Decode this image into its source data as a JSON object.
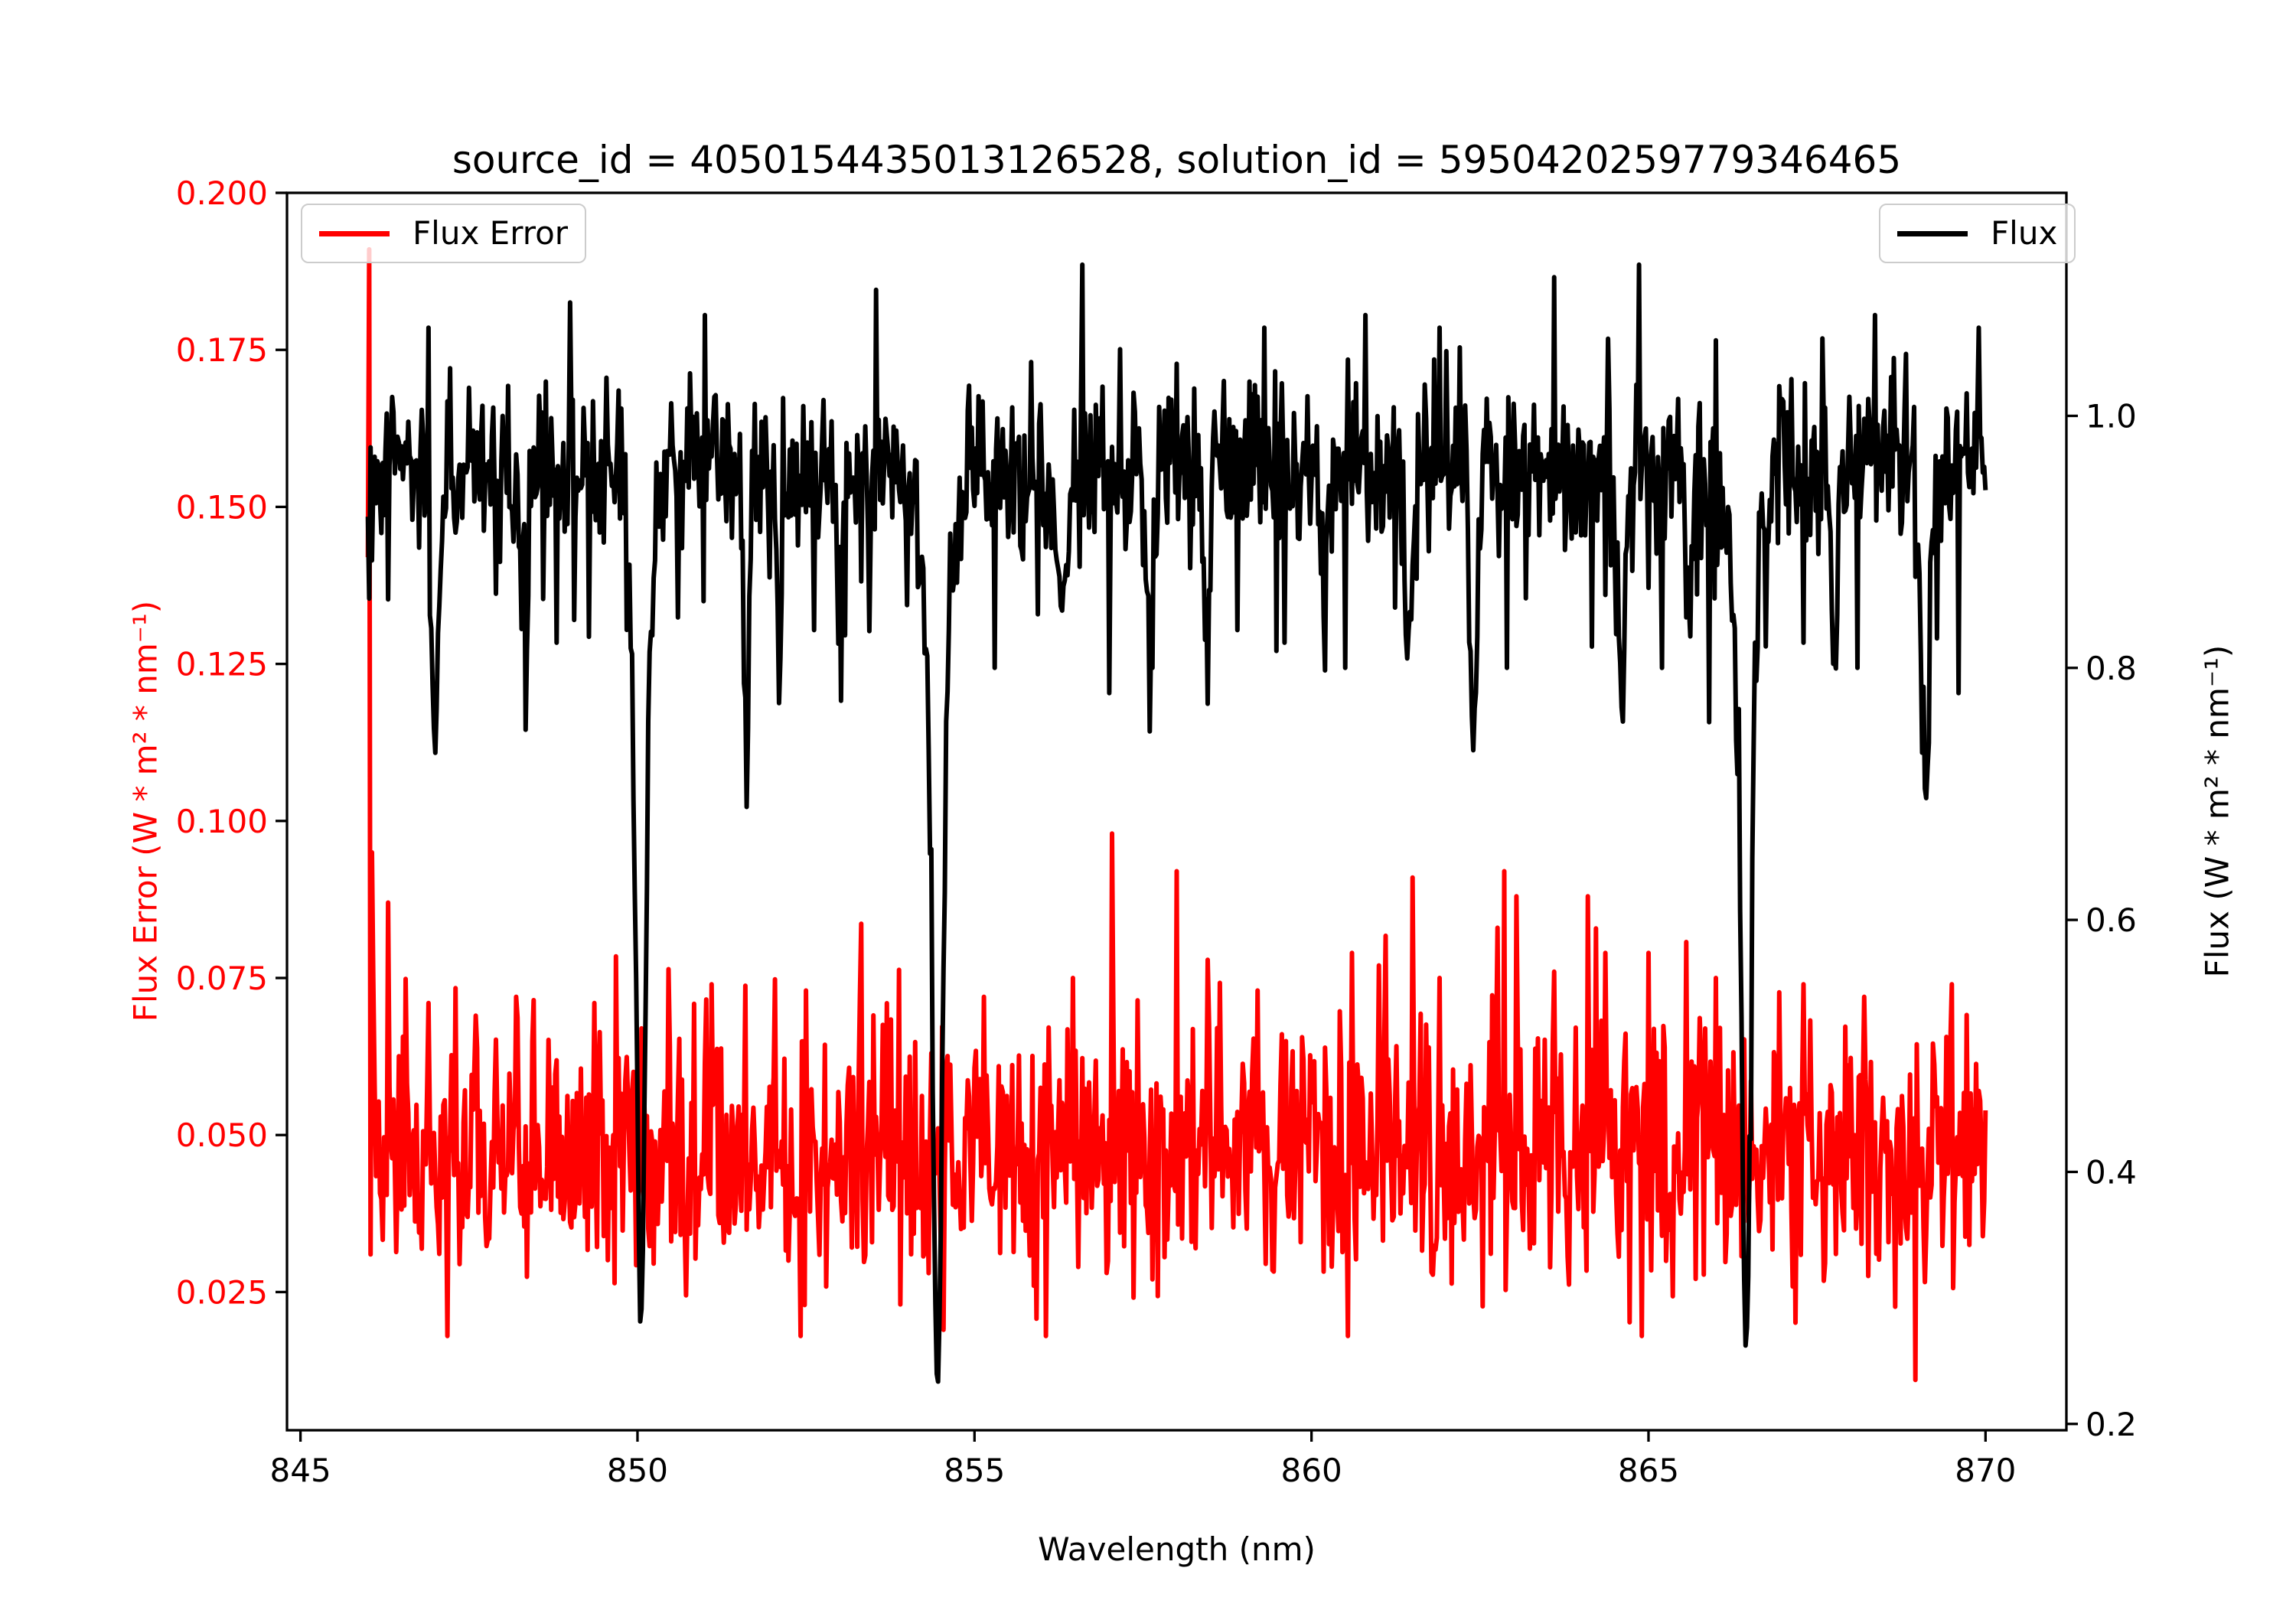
{
  "figure": {
    "title": "source_id = 4050154435013126528, solution_id = 5950420259779346465",
    "background": "#ffffff"
  },
  "legend": {
    "left": {
      "label": "Flux Error",
      "line_color": "#ff0000"
    },
    "right": {
      "label": "Flux",
      "line_color": "#000000"
    }
  },
  "chart_data": {
    "type": "line",
    "title": "source_id = 4050154435013126528, solution_id = 5950420259779346465",
    "xlabel": "Wavelength (nm)",
    "ylabel_left": "Flux Error (W * m² * nm⁻¹)",
    "ylabel_right": "Flux (W * m² * nm⁻¹)",
    "grid": false,
    "legend_positions": [
      "upper left",
      "upper right"
    ],
    "xlim": [
      844.8,
      871.2
    ],
    "ylim_left": [
      0.003,
      0.2
    ],
    "ylim_right": [
      0.195,
      1.177
    ],
    "xticks": {
      "values": [
        845,
        850,
        855,
        860,
        865,
        870
      ],
      "labels": [
        "845",
        "850",
        "855",
        "860",
        "865",
        "870"
      ]
    },
    "yticks_left": {
      "values": [
        0.2,
        0.175,
        0.15,
        0.125,
        0.1,
        0.075,
        0.05,
        0.025
      ],
      "labels": [
        "0.200",
        "0.175",
        "0.150",
        "0.125",
        "0.100",
        "0.075",
        "0.050",
        "0.025"
      ],
      "color": "#ff0000"
    },
    "yticks_right": {
      "values": [
        1.0,
        0.8,
        0.6,
        0.4,
        0.2
      ],
      "labels": [
        "1.0",
        "0.8",
        "0.6",
        "0.4",
        "0.2"
      ],
      "color": "#000000"
    },
    "x_start": 846.0,
    "x_end": 870.0,
    "x_step": 0.02,
    "random_seed": 42,
    "series": [
      {
        "name": "Flux Error",
        "axis": "left",
        "color": "#ff0000",
        "line_width": 6,
        "baseline": 0.046,
        "noise_sigma": 0.0095,
        "tail_prob": 0.05,
        "tail_min": 0.01,
        "tail_max": 0.022,
        "min_clamp": 0.018,
        "first_points": [
          0.142,
          0.191,
          0.031,
          0.095,
          0.075,
          0.058
        ],
        "spikes": [
          [
            846.3,
            0.087
          ],
          [
            846.9,
            0.071
          ],
          [
            847.6,
            0.069
          ],
          [
            848.2,
            0.072
          ],
          [
            849.35,
            0.071
          ],
          [
            851.1,
            0.074
          ],
          [
            852.5,
            0.073
          ],
          [
            853.3,
            0.072
          ],
          [
            855.15,
            0.072
          ],
          [
            856.45,
            0.075
          ],
          [
            857.05,
            0.098
          ],
          [
            858.0,
            0.092
          ],
          [
            859.2,
            0.073
          ],
          [
            860.6,
            0.079
          ],
          [
            861.0,
            0.077
          ],
          [
            861.5,
            0.091
          ],
          [
            861.9,
            0.075
          ],
          [
            862.85,
            0.092
          ],
          [
            863.05,
            0.088
          ],
          [
            863.6,
            0.076
          ],
          [
            864.1,
            0.088
          ],
          [
            864.35,
            0.079
          ],
          [
            865.0,
            0.079
          ],
          [
            866.0,
            0.075
          ],
          [
            867.3,
            0.074
          ],
          [
            868.2,
            0.072
          ],
          [
            869.5,
            0.074
          ]
        ],
        "low_spikes": [
          [
            854.55,
            0.019
          ],
          [
            868.95,
            0.011
          ]
        ]
      },
      {
        "name": "Flux",
        "axis": "right",
        "color": "#000000",
        "line_width": 6,
        "continuum": 0.958,
        "noise_sigma": 0.033,
        "first_points": [
          0.92,
          0.855,
          0.975
        ],
        "absorption_lines": [
          [
            847.0,
            0.13,
            0.09,
            0.05,
            0.22
          ],
          [
            848.35,
            0.09,
            0.05,
            0.03,
            0.1
          ],
          [
            850.05,
            0.52,
            0.085,
            0.16,
            0.22
          ],
          [
            851.62,
            0.2,
            0.05,
            0.04,
            0.12
          ],
          [
            852.1,
            0.11,
            0.05,
            0.03,
            0.1
          ],
          [
            853.0,
            0.09,
            0.05,
            0.04,
            0.1
          ],
          [
            854.45,
            0.55,
            0.1,
            0.17,
            0.28
          ],
          [
            856.3,
            0.1,
            0.06,
            0.04,
            0.15
          ],
          [
            857.6,
            0.09,
            0.05,
            0.03,
            0.08
          ],
          [
            858.45,
            0.13,
            0.05,
            0.03,
            0.1
          ],
          [
            860.2,
            0.08,
            0.05,
            0.03,
            0.1
          ],
          [
            861.45,
            0.11,
            0.06,
            0.04,
            0.1
          ],
          [
            862.4,
            0.15,
            0.06,
            0.05,
            0.12
          ],
          [
            864.6,
            0.14,
            0.06,
            0.05,
            0.12
          ],
          [
            865.6,
            0.08,
            0.05,
            0.03,
            0.08
          ],
          [
            866.45,
            0.53,
            0.09,
            0.17,
            0.25
          ],
          [
            867.75,
            0.12,
            0.05,
            0.04,
            0.1
          ],
          [
            869.1,
            0.22,
            0.07,
            0.06,
            0.12
          ]
        ],
        "up_outliers": [
          [
            846.9,
            1.07
          ],
          [
            849.0,
            1.09
          ],
          [
            851.0,
            1.08
          ],
          [
            853.55,
            1.1
          ],
          [
            856.6,
            1.12
          ],
          [
            859.3,
            1.07
          ],
          [
            860.8,
            1.08
          ],
          [
            861.9,
            1.07
          ],
          [
            863.6,
            1.11
          ],
          [
            864.85,
            1.12
          ],
          [
            866.0,
            1.06
          ],
          [
            868.35,
            1.08
          ],
          [
            869.9,
            1.07
          ]
        ],
        "down_outliers": [
          [
            848.8,
            0.82
          ],
          [
            850.6,
            0.84
          ],
          [
            852.62,
            0.83
          ],
          [
            855.3,
            0.8
          ],
          [
            857.0,
            0.78
          ],
          [
            857.65,
            0.8
          ],
          [
            858.9,
            0.83
          ],
          [
            859.6,
            0.82
          ],
          [
            860.5,
            0.8
          ],
          [
            862.9,
            0.8
          ],
          [
            865.2,
            0.8
          ],
          [
            867.3,
            0.82
          ],
          [
            868.1,
            0.8
          ],
          [
            869.6,
            0.78
          ]
        ]
      }
    ],
    "spine_color": "#000000",
    "tick_color": "#000000"
  }
}
